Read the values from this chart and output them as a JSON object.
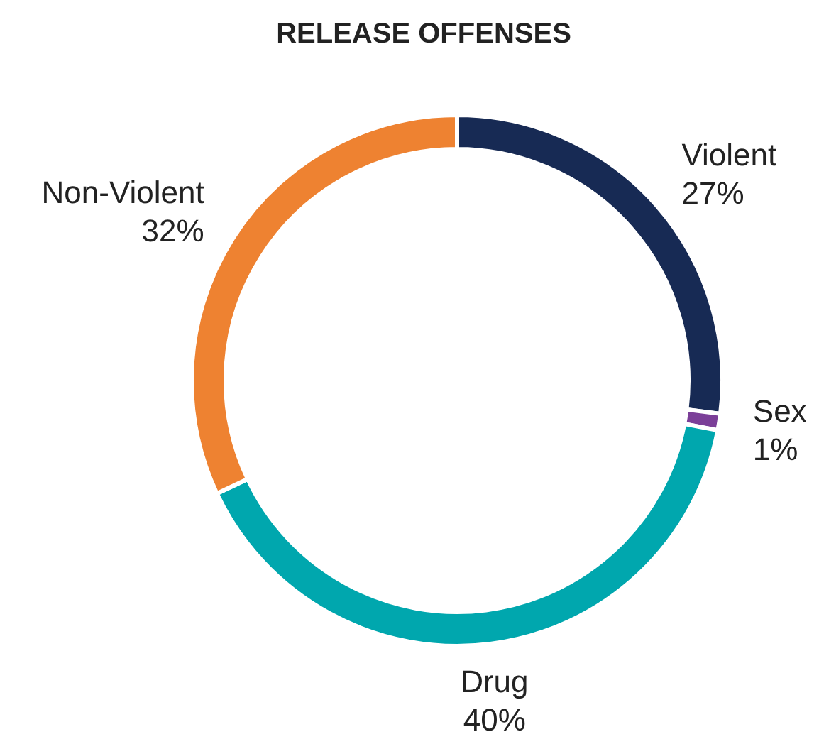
{
  "chart_data": {
    "type": "donut",
    "title": "RELEASE OFFENSES",
    "categories": [
      "Violent",
      "Sex",
      "Drug",
      "Non-Violent"
    ],
    "values": [
      27,
      1,
      40,
      32
    ],
    "colors": [
      "#172a54",
      "#7b3f98",
      "#00a7ae",
      "#ee8231"
    ],
    "value_labels": [
      "27%",
      "1%",
      "40%",
      "32%"
    ]
  }
}
